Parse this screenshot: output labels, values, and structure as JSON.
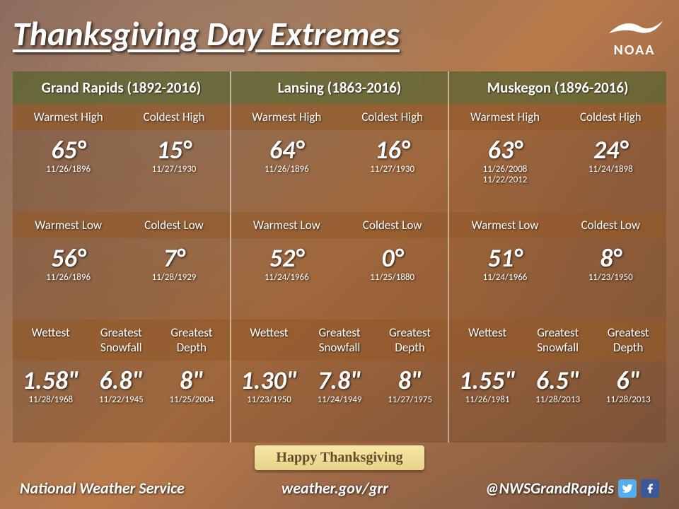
{
  "title": "Thanksgiving Day Extremes",
  "logo_text": "NOAA",
  "banner_text": "Happy Thanksgiving",
  "footer": {
    "left": "National Weather Service",
    "center": "weather.gov/grr",
    "right": "@NWSGrandRapids"
  },
  "colors": {
    "city_header_bg": "rgba(90,100,50,0.75)",
    "label_row_bg": "rgba(140,85,40,0.75)",
    "value_row_bg": "rgba(100,60,30,0.3)",
    "text": "#ffffff"
  },
  "cities": [
    {
      "name": "Grand Rapids (1892-2016)",
      "highs": {
        "labels": [
          "Warmest High",
          "Coldest High"
        ],
        "values": [
          {
            "v": "65°",
            "d": "11/26/1896"
          },
          {
            "v": "15°",
            "d": "11/27/1930"
          }
        ]
      },
      "lows": {
        "labels": [
          "Warmest Low",
          "Coldest Low"
        ],
        "values": [
          {
            "v": "56°",
            "d": "11/26/1896"
          },
          {
            "v": "7°",
            "d": "11/28/1929"
          }
        ]
      },
      "precip": {
        "labels": [
          "Wettest",
          "Greatest Snowfall",
          "Greatest Depth"
        ],
        "values": [
          {
            "v": "1.58\"",
            "d": "11/28/1968"
          },
          {
            "v": "6.8\"",
            "d": "11/22/1945"
          },
          {
            "v": "8\"",
            "d": "11/25/2004"
          }
        ]
      }
    },
    {
      "name": "Lansing (1863-2016)",
      "highs": {
        "labels": [
          "Warmest High",
          "Coldest High"
        ],
        "values": [
          {
            "v": "64°",
            "d": "11/26/1896"
          },
          {
            "v": "16°",
            "d": "11/27/1930"
          }
        ]
      },
      "lows": {
        "labels": [
          "Warmest Low",
          "Coldest Low"
        ],
        "values": [
          {
            "v": "52°",
            "d": "11/24/1966"
          },
          {
            "v": "0°",
            "d": "11/25/1880"
          }
        ]
      },
      "precip": {
        "labels": [
          "Wettest",
          "Greatest Snowfall",
          "Greatest Depth"
        ],
        "values": [
          {
            "v": "1.30\"",
            "d": "11/23/1950"
          },
          {
            "v": "7.8\"",
            "d": "11/24/1949"
          },
          {
            "v": "8\"",
            "d": "11/27/1975"
          }
        ]
      }
    },
    {
      "name": "Muskegon (1896-2016)",
      "highs": {
        "labels": [
          "Warmest High",
          "Coldest High"
        ],
        "values": [
          {
            "v": "63°",
            "d": "11/26/2008",
            "d2": "11/22/2012"
          },
          {
            "v": "24°",
            "d": "11/24/1898"
          }
        ]
      },
      "lows": {
        "labels": [
          "Warmest Low",
          "Coldest Low"
        ],
        "values": [
          {
            "v": "51°",
            "d": "11/24/1966"
          },
          {
            "v": "8°",
            "d": "11/23/1950"
          }
        ]
      },
      "precip": {
        "labels": [
          "Wettest",
          "Greatest Snowfall",
          "Greatest Depth"
        ],
        "values": [
          {
            "v": "1.55\"",
            "d": "11/26/1981"
          },
          {
            "v": "6.5\"",
            "d": "11/28/2013"
          },
          {
            "v": "6\"",
            "d": "11/28/2013"
          }
        ]
      }
    }
  ]
}
